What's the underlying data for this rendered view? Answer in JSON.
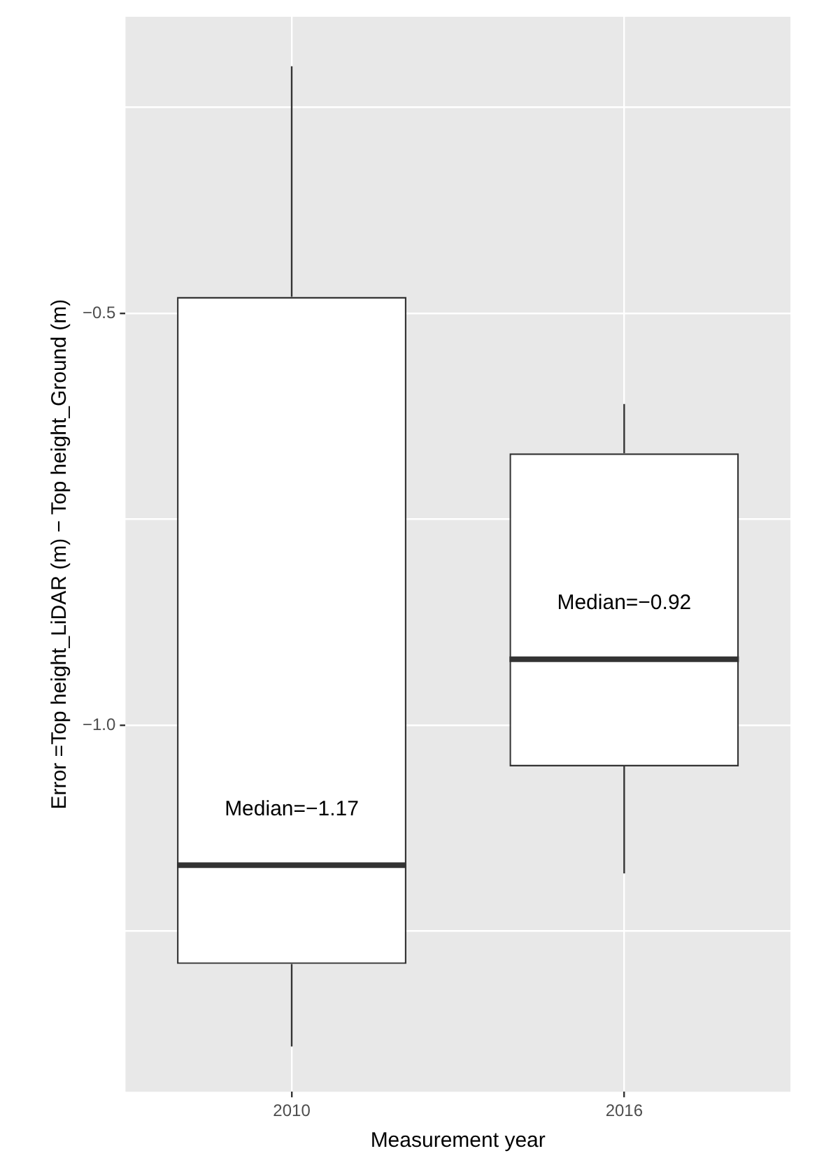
{
  "chart_data": {
    "type": "box",
    "xlabel": "Measurement year",
    "ylabel": "Error =Top height_LiDAR (m) − Top height_Ground (m)",
    "categories": [
      "2010",
      "2016"
    ],
    "boxes": [
      {
        "low": -1.39,
        "q1": -1.29,
        "median": -1.17,
        "q3": -0.48,
        "high": -0.2
      },
      {
        "low": -1.18,
        "q1": -1.05,
        "median": -0.92,
        "q3": -0.67,
        "high": -0.61
      }
    ],
    "ylim": [
      -1.445,
      -0.14
    ],
    "yticks": [
      {
        "value": -1.25,
        "label": null
      },
      {
        "value": -1.0,
        "label": "−1.0"
      },
      {
        "value": -0.75,
        "label": null
      },
      {
        "value": -0.5,
        "label": "−0.5"
      },
      {
        "value": -0.25,
        "label": null
      }
    ],
    "grid": true,
    "annotations": [
      {
        "text": "Median=−1.17",
        "x": "2010",
        "y": -1.17
      },
      {
        "text": "Median=−0.92",
        "x": "2016",
        "y": -0.92
      }
    ]
  }
}
